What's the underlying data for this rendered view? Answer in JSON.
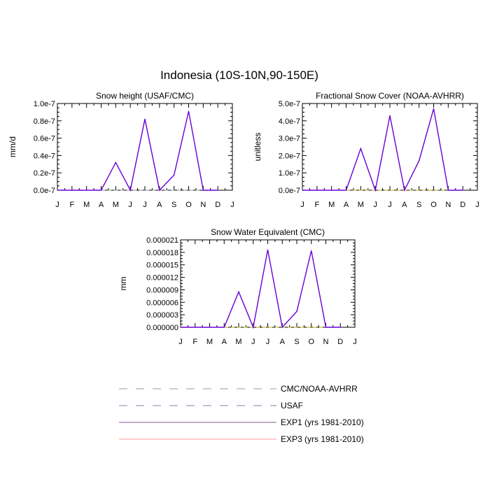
{
  "title": "Indonesia (10S-10N,90-150E)",
  "months": [
    "J",
    "F",
    "M",
    "A",
    "M",
    "J",
    "J",
    "A",
    "S",
    "O",
    "N",
    "D",
    "J"
  ],
  "chart_data": [
    {
      "type": "line",
      "title": "Snow height (USAF/CMC)",
      "ylabel": "mm/d",
      "ylim": [
        0,
        1e-07
      ],
      "yticks": [
        0,
        2e-08,
        4e-08,
        6e-08,
        8e-08,
        1e-07
      ],
      "ytick_labels": [
        "0.0e-7",
        "0.2e-7",
        "0.4e-7",
        "0.6e-7",
        "0.8e-7",
        "1.0e-7"
      ],
      "series": [
        {
          "name": "EXP1 (yrs 1981-2010)",
          "color": "#6a00d8",
          "values": [
            0,
            0,
            0,
            0,
            3.2e-08,
            0,
            8.2e-08,
            0,
            1.75e-08,
            9.1e-08,
            0,
            0
          ]
        },
        {
          "name": "USAF",
          "color": "#8f8fa6",
          "values": [
            0,
            0,
            0,
            0,
            0,
            0,
            0,
            0,
            0,
            0,
            0,
            0
          ]
        }
      ]
    },
    {
      "type": "line",
      "title": "Fractional Snow Cover (NOAA-AVHRR)",
      "ylabel": "unitless",
      "ylim": [
        0,
        5e-07
      ],
      "yticks": [
        0,
        1e-07,
        2e-07,
        3e-07,
        4e-07,
        5e-07
      ],
      "ytick_labels": [
        "0.0e-7",
        "1.0e-7",
        "2.0e-7",
        "3.0e-7",
        "4.0e-7",
        "5.0e-7"
      ],
      "series": [
        {
          "name": "EXP1 (yrs 1981-2010)",
          "color": "#6a00d8",
          "values": [
            0,
            0,
            0,
            0,
            2.4e-07,
            0,
            4.3e-07,
            0,
            1.7e-07,
            4.7e-07,
            0,
            0
          ]
        },
        {
          "name": "CMC/NOAA-AVHRR",
          "color": "#b8b000",
          "values": [
            0,
            0,
            0,
            0,
            0,
            0,
            0,
            0,
            0,
            0,
            0,
            0
          ]
        }
      ]
    },
    {
      "type": "line",
      "title": "Snow Water Equivalent (CMC)",
      "ylabel": "mm",
      "ylim": [
        0,
        2.1e-05
      ],
      "yticks": [
        0,
        3e-06,
        6e-06,
        9e-06,
        1.2e-05,
        1.5e-05,
        1.8e-05,
        2.1e-05
      ],
      "ytick_labels": [
        "0.000000",
        "0.000003",
        "0.000006",
        "0.000009",
        "0.000012",
        "0.000015",
        "0.000018",
        "0.000021"
      ],
      "series": [
        {
          "name": "EXP1 (yrs 1981-2010)",
          "color": "#6a00d8",
          "values": [
            0,
            0,
            0,
            0,
            8.5e-06,
            0,
            1.86e-05,
            0,
            3.8e-06,
            1.84e-05,
            0,
            0
          ]
        },
        {
          "name": "CMC/NOAA-AVHRR",
          "color": "#b8b000",
          "values": [
            0,
            0,
            0,
            0,
            0,
            0,
            0,
            0,
            0,
            0,
            0,
            0
          ]
        }
      ]
    }
  ],
  "legend": [
    {
      "label": "CMC/NOAA-AVHRR",
      "style": "dashed",
      "color": "#9a9aaa"
    },
    {
      "label": "USAF",
      "style": "dashed",
      "color": "#8080a8"
    },
    {
      "label": "EXP1 (yrs 1981-2010)",
      "style": "solid",
      "color": "#8a5a9a"
    },
    {
      "label": "EXP3 (yrs 1981-2010)",
      "style": "solid",
      "color": "#ff9a9a"
    }
  ]
}
